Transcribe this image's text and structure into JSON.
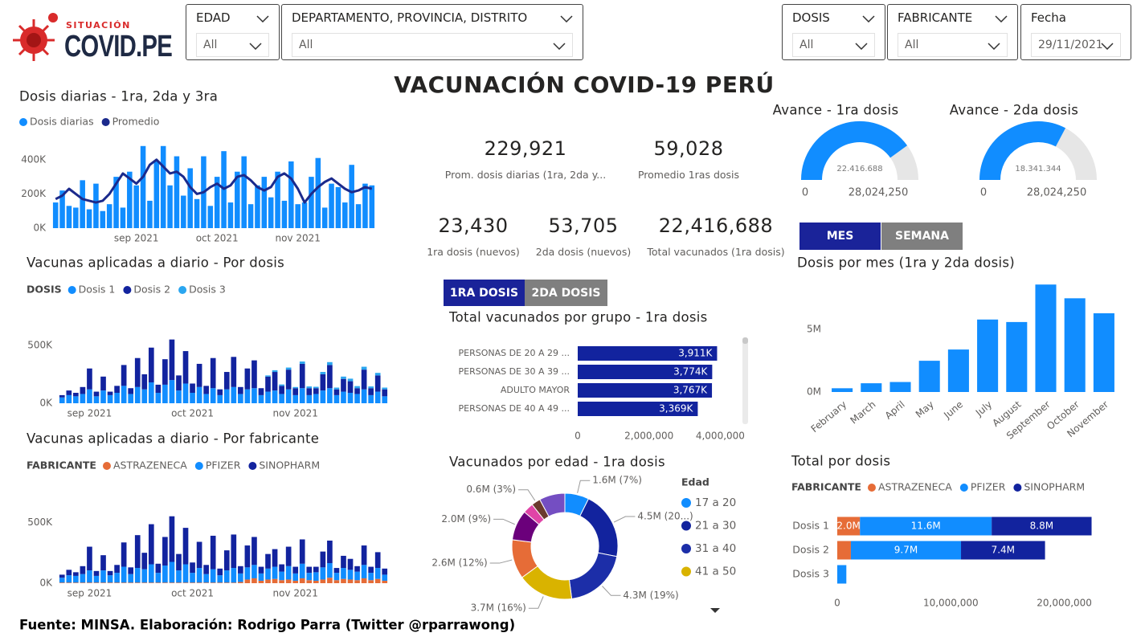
{
  "header": {
    "logo_top": "SITUACIÓN",
    "logo": "COVID.PE",
    "title": "VACUNACIÓN COVID-19 PERÚ"
  },
  "filters": [
    {
      "label": "EDAD",
      "value": "All"
    },
    {
      "label": "DEPARTAMENTO, PROVINCIA, DISTRITO",
      "value": "All"
    },
    {
      "label": "DOSIS",
      "value": "All"
    },
    {
      "label": "FABRICANTE",
      "value": "All"
    },
    {
      "label": "Fecha",
      "value": "29/11/2021"
    }
  ],
  "kpis": [
    {
      "value": "229,921",
      "label": "Prom. dosis diarias (1ra, 2da y..."
    },
    {
      "value": "59,028",
      "label": "Promedio 1ras dosis"
    },
    {
      "value": "23,430",
      "label": "1ra dosis (nuevos)"
    },
    {
      "value": "53,705",
      "label": "2da dosis (nuevos)"
    },
    {
      "value": "22,416,688",
      "label": "Total vacunados (1ra dosis)"
    }
  ],
  "buttons": {
    "period": [
      "MES",
      "SEMANA"
    ],
    "dose": [
      "1RA DOSIS",
      "2DA DOSIS"
    ]
  },
  "footer": "Fuente: MINSA. Elaboración: Rodrigo Parra (Twitter @rparrawong)",
  "chart_data": [
    {
      "type": "combo",
      "title": "Dosis diarias - 1ra, 2da y 3ra",
      "categories": [
        null,
        null,
        null,
        null,
        null,
        null,
        null,
        null,
        null,
        null,
        null,
        null,
        "sep 2021",
        null,
        null,
        null,
        null,
        null,
        null,
        null,
        null,
        null,
        null,
        null,
        "oct 2021",
        null,
        null,
        null,
        null,
        null,
        null,
        null,
        null,
        null,
        null,
        null,
        "nov 2021",
        null,
        null,
        null,
        null,
        null,
        null,
        null,
        null,
        null,
        null,
        null
      ],
      "series": [
        {
          "name": "Dosis diarias",
          "color": "#118dff",
          "values": [
            150000,
            220000,
            130000,
            120000,
            280000,
            110000,
            260000,
            100000,
            140000,
            300000,
            120000,
            330000,
            250000,
            480000,
            160000,
            390000,
            480000,
            250000,
            420000,
            190000,
            350000,
            170000,
            420000,
            130000,
            300000,
            450000,
            150000,
            330000,
            420000,
            140000,
            250000,
            300000,
            180000,
            330000,
            160000,
            390000,
            140000,
            150000,
            300000,
            410000,
            120000,
            260000,
            240000,
            150000,
            370000,
            140000,
            260000,
            250000
          ]
        },
        {
          "name": "Promedio",
          "color": "#1b2a8c",
          "type": "line",
          "values": [
            170000,
            190000,
            230000,
            200000,
            170000,
            160000,
            150000,
            160000,
            200000,
            260000,
            320000,
            290000,
            260000,
            300000,
            370000,
            400000,
            360000,
            320000,
            330000,
            300000,
            240000,
            200000,
            210000,
            240000,
            260000,
            230000,
            250000,
            300000,
            310000,
            280000,
            240000,
            220000,
            240000,
            300000,
            320000,
            290000,
            230000,
            150000,
            200000,
            240000,
            270000,
            290000,
            260000,
            230000,
            210000,
            220000,
            240000,
            230000
          ]
        }
      ],
      "ylim": [
        0,
        540000
      ],
      "yticks": [
        {
          "value": 0,
          "label": "0K"
        },
        {
          "value": 200000,
          "label": "200K"
        },
        {
          "value": 400000,
          "label": "400K"
        }
      ],
      "grid": false
    },
    {
      "type": "stacked_bar",
      "title": "Vacunas aplicadas a diario - Por dosis",
      "legend_title": "DOSIS",
      "categories": [
        null,
        null,
        null,
        null,
        "sep 2021",
        null,
        null,
        null,
        null,
        null,
        null,
        null,
        null,
        null,
        null,
        null,
        null,
        null,
        null,
        "oct 2021",
        null,
        null,
        null,
        null,
        null,
        null,
        null,
        null,
        null,
        null,
        null,
        null,
        null,
        null,
        "nov 2021",
        null,
        null,
        null,
        null,
        null,
        null,
        null,
        null,
        null,
        null,
        null,
        null,
        null
      ],
      "series": [
        {
          "name": "Dosis 1",
          "color": "#118dff",
          "values": [
            50000,
            70000,
            60000,
            80000,
            120000,
            60000,
            110000,
            70000,
            90000,
            150000,
            80000,
            140000,
            120000,
            180000,
            90000,
            160000,
            200000,
            110000,
            170000,
            90000,
            140000,
            80000,
            130000,
            70000,
            120000,
            140000,
            80000,
            120000,
            130000,
            70000,
            100000,
            110000,
            80000,
            120000,
            70000,
            130000,
            70000,
            80000,
            110000,
            130000,
            70000,
            100000,
            90000,
            80000,
            120000,
            70000,
            100000,
            60000
          ]
        },
        {
          "name": "Dosis 2",
          "color": "#12239e",
          "values": [
            20000,
            40000,
            30000,
            60000,
            180000,
            40000,
            120000,
            30000,
            60000,
            180000,
            50000,
            250000,
            130000,
            300000,
            70000,
            220000,
            350000,
            130000,
            280000,
            80000,
            200000,
            70000,
            260000,
            50000,
            150000,
            260000,
            60000,
            180000,
            240000,
            60000,
            130000,
            160000,
            70000,
            170000,
            60000,
            210000,
            60000,
            50000,
            140000,
            200000,
            50000,
            110000,
            100000,
            50000,
            170000,
            60000,
            140000,
            60000
          ]
        },
        {
          "name": "Dosis 3",
          "color": "#2aa6f0",
          "values": [
            0,
            0,
            0,
            0,
            0,
            0,
            0,
            0,
            0,
            0,
            0,
            0,
            0,
            0,
            0,
            0,
            0,
            0,
            0,
            0,
            0,
            0,
            0,
            0,
            0,
            0,
            0,
            0,
            0,
            0,
            10000,
            15000,
            12000,
            18000,
            10000,
            20000,
            15000,
            12000,
            20000,
            25000,
            15000,
            20000,
            22000,
            18000,
            25000,
            15000,
            22000,
            15000
          ]
        }
      ],
      "ylim": [
        0,
        700000
      ],
      "yticks": [
        {
          "value": 0,
          "label": "0K"
        },
        {
          "value": 500000,
          "label": "500K"
        }
      ],
      "grid": false
    },
    {
      "type": "stacked_bar",
      "title": "Vacunas aplicadas a diario - Por fabricante",
      "legend_title": "FABRICANTE",
      "categories": [
        null,
        null,
        null,
        null,
        "sep 2021",
        null,
        null,
        null,
        null,
        null,
        null,
        null,
        null,
        null,
        null,
        null,
        null,
        null,
        null,
        "oct 2021",
        null,
        null,
        null,
        null,
        null,
        null,
        null,
        null,
        null,
        null,
        null,
        null,
        null,
        null,
        "nov 2021",
        null,
        null,
        null,
        null,
        null,
        null,
        null,
        null,
        null,
        null,
        null,
        null,
        null
      ],
      "series": [
        {
          "name": "ASTRAZENECA",
          "color": "#e66c37",
          "values": [
            5000,
            5000,
            5000,
            5000,
            5000,
            5000,
            5000,
            5000,
            5000,
            5000,
            5000,
            5000,
            5000,
            5000,
            5000,
            5000,
            5000,
            5000,
            5000,
            5000,
            5000,
            5000,
            5000,
            5000,
            5000,
            5000,
            10000,
            30000,
            40000,
            20000,
            30000,
            35000,
            25000,
            30000,
            20000,
            40000,
            25000,
            20000,
            30000,
            45000,
            25000,
            35000,
            30000,
            25000,
            40000,
            25000,
            35000,
            20000
          ]
        },
        {
          "name": "PFIZER",
          "color": "#118dff",
          "values": [
            40000,
            60000,
            55000,
            70000,
            100000,
            55000,
            100000,
            60000,
            80000,
            130000,
            70000,
            120000,
            110000,
            150000,
            80000,
            140000,
            170000,
            100000,
            150000,
            80000,
            120000,
            70000,
            110000,
            60000,
            100000,
            120000,
            70000,
            100000,
            110000,
            60000,
            90000,
            100000,
            70000,
            110000,
            60000,
            120000,
            60000,
            70000,
            100000,
            120000,
            60000,
            90000,
            80000,
            70000,
            110000,
            60000,
            90000,
            50000
          ]
        },
        {
          "name": "SINOPHARM",
          "color": "#12239e",
          "values": [
            25000,
            45000,
            30000,
            65000,
            195000,
            40000,
            125000,
            35000,
            65000,
            200000,
            55000,
            270000,
            135000,
            330000,
            75000,
            235000,
            375000,
            135000,
            300000,
            85000,
            215000,
            75000,
            275000,
            55000,
            165000,
            275000,
            60000,
            180000,
            230000,
            55000,
            120000,
            145000,
            60000,
            160000,
            55000,
            200000,
            50000,
            45000,
            130000,
            185000,
            40000,
            100000,
            90000,
            45000,
            160000,
            50000,
            130000,
            50000
          ]
        }
      ],
      "ylim": [
        0,
        700000
      ],
      "yticks": [
        {
          "value": 0,
          "label": "0K"
        },
        {
          "value": 500000,
          "label": "500K"
        }
      ],
      "grid": false
    },
    {
      "type": "gauge",
      "title": "Avance - 1ra dosis",
      "value": 22416688,
      "value_label": "22.416.688",
      "min": 0,
      "max": {
        "value": 28024250,
        "label": "28,024,250"
      },
      "color": "#118dff"
    },
    {
      "type": "gauge",
      "title": "Avance - 2da dosis",
      "value": 18341344,
      "value_label": "18.341.344",
      "min": 0,
      "max": {
        "value": 28024250,
        "label": "28,024,250"
      },
      "color": "#118dff"
    },
    {
      "type": "bar",
      "title": "Dosis por mes (1ra y 2da dosis)",
      "categories": [
        "February",
        "March",
        "April",
        "May",
        "June",
        "July",
        "August",
        "September",
        "October",
        "November"
      ],
      "values": [
        300000,
        700000,
        800000,
        2500000,
        3400000,
        5800000,
        5600000,
        8600000,
        7500000,
        6300000
      ],
      "color": "#118dff",
      "ylim": [
        0,
        9000000
      ],
      "yticks": [
        {
          "value": 0,
          "label": "0M"
        },
        {
          "value": 5000000,
          "label": "5M"
        }
      ],
      "grid": false
    },
    {
      "type": "hbar",
      "title": "Total vacunados por grupo - 1ra dosis",
      "categories": [
        "PERSONAS DE 20 A 29 ...",
        "PERSONAS DE 30 A 39 ...",
        "ADULTO MAYOR",
        "PERSONAS DE 40 A 49 ..."
      ],
      "values": [
        3911000,
        3774000,
        3767000,
        3369000
      ],
      "value_labels": [
        "3,911K",
        "3,774K",
        "3,767K",
        "3,369K"
      ],
      "color": "#12239e",
      "xlim": [
        0,
        4600000
      ],
      "xticks": [
        0,
        {
          "value": 2000000,
          "label": "2,000,000"
        },
        {
          "value": 4000000,
          "label": "4,000,000"
        }
      ]
    },
    {
      "type": "donut",
      "title": "Vacunados por edad - 1ra dosis",
      "legend_title": "Edad",
      "categories": [
        "17 a 20",
        "21 a 30",
        "31 a 40",
        "41 a 50",
        null,
        null,
        null,
        null,
        null
      ],
      "values": [
        1600000,
        4500000,
        4300000,
        3700000,
        2600000,
        2000000,
        700000,
        600000,
        1700000
      ],
      "value_labels": [
        "1.6M (7%)",
        "4.5M (20...)",
        "4.3M (19%)",
        "3.7M (16%)",
        "2.6M (12%)",
        "2.0M (9%)",
        null,
        "0.6M (3%)",
        null
      ],
      "colors": [
        "#118dff",
        "#12239e",
        "#1c2ea8",
        "#d9b300",
        "#e66c37",
        "#6b007b",
        "#e044a7",
        "#6b3a2e",
        "#744ec2"
      ]
    },
    {
      "type": "stacked_hbar",
      "title": "Total por dosis",
      "legend_title": "FABRICANTE",
      "categories": [
        "Dosis 1",
        "Dosis 2",
        "Dosis 3"
      ],
      "series": [
        {
          "name": "ASTRAZENECA",
          "color": "#e66c37",
          "values": [
            2000000,
            1200000,
            null
          ],
          "value_labels": [
            "2.0M",
            null,
            null
          ]
        },
        {
          "name": "PFIZER",
          "color": "#118dff",
          "values": [
            11600000,
            9700000,
            800000
          ],
          "value_labels": [
            "11.6M",
            "9.7M",
            null
          ]
        },
        {
          "name": "SINOPHARM",
          "color": "#12239e",
          "values": [
            8800000,
            7400000,
            null
          ],
          "value_labels": [
            "8.8M",
            "7.4M",
            null
          ]
        }
      ],
      "xlim": [
        0,
        23000000
      ],
      "xticks": [
        0,
        {
          "value": 10000000,
          "label": "10,000,000"
        },
        {
          "value": 20000000,
          "label": "20,000,000"
        }
      ]
    }
  ]
}
